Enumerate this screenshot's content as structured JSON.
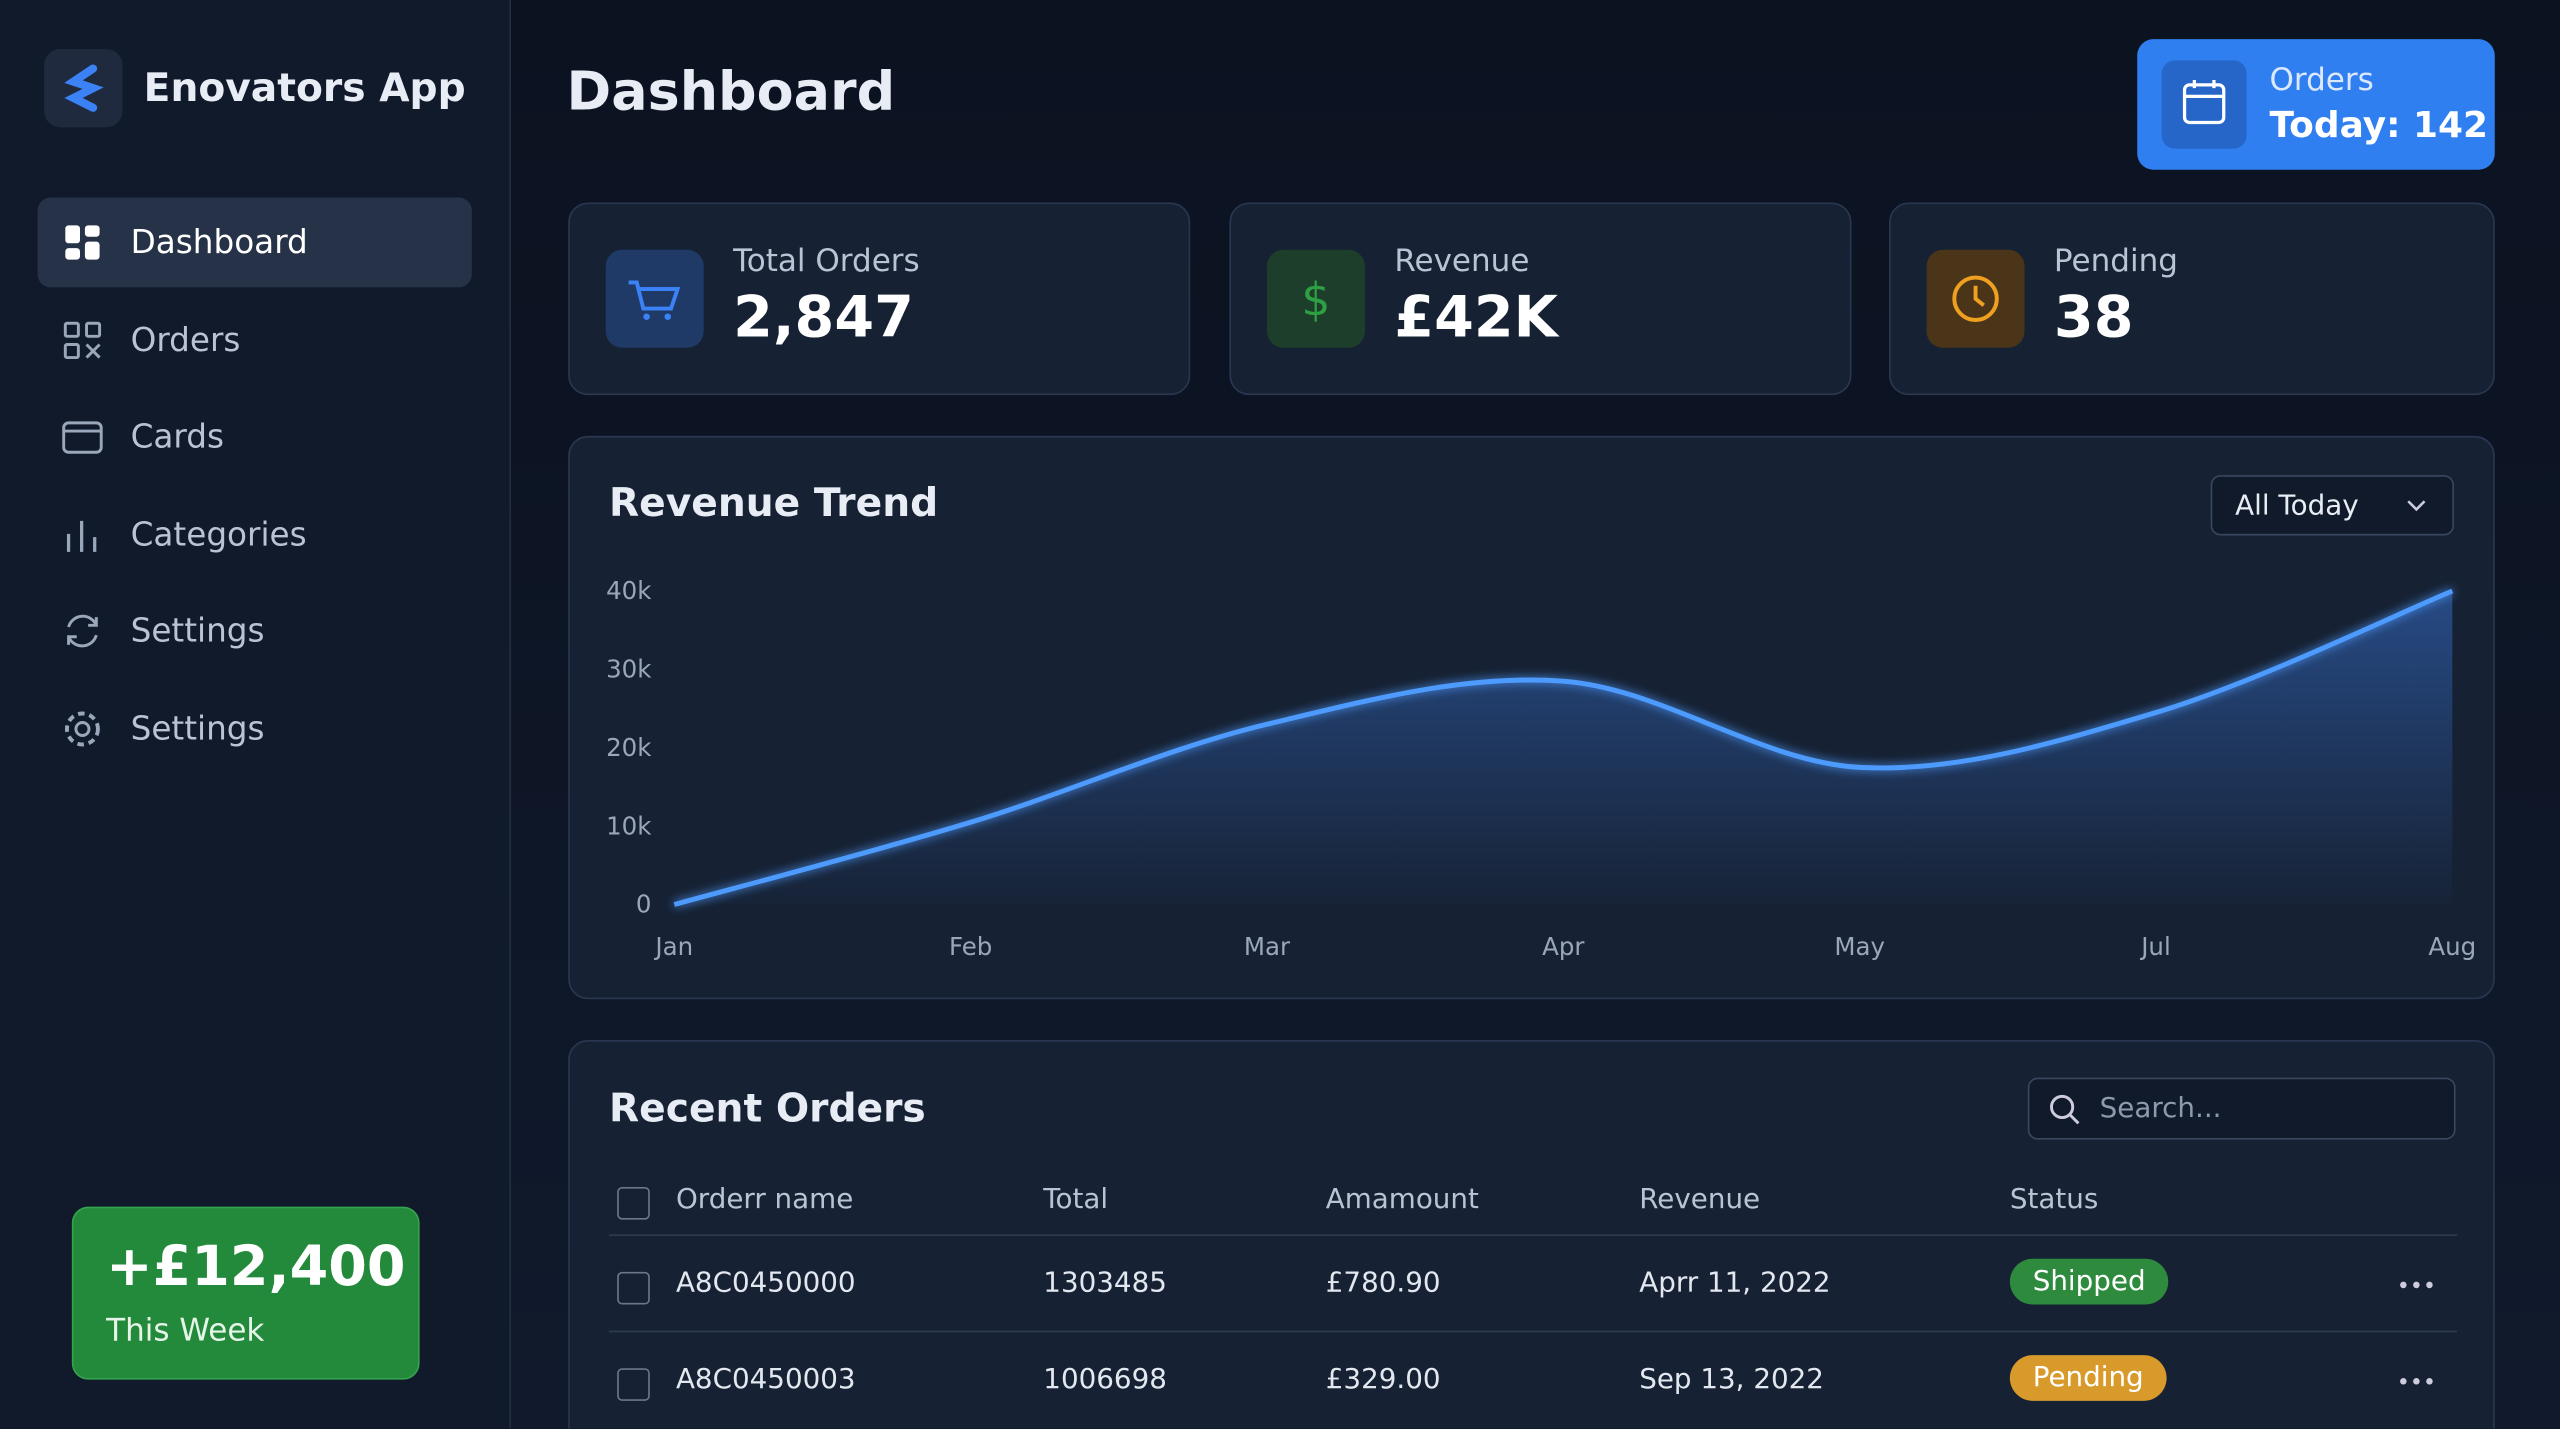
{
  "app": {
    "name": "Enovators App"
  },
  "nav": [
    "Dashboard",
    "Orders",
    "Cards",
    "Categories",
    "Settings",
    "Settings"
  ],
  "promo": {
    "value": "+£12,400",
    "label": "This Week"
  },
  "header": {
    "title": "Dashboard",
    "orders_label": "Orders",
    "orders_value": "Today: 142"
  },
  "stats": [
    {
      "label": "Total Orders",
      "value": "2,847"
    },
    {
      "label": "Revenue",
      "value": "£42K"
    },
    {
      "label": "Pending",
      "value": "38"
    }
  ],
  "chart_data": {
    "type": "line",
    "title": "Revenue Trend",
    "filter": "All Today",
    "categories": [
      "Jan",
      "Feb",
      "Mar",
      "Apr",
      "May",
      "Jul",
      "Aug"
    ],
    "series": [
      {
        "name": "Revenue",
        "color": "#4d9bff",
        "values": [
          0,
          10500,
          23000,
          28500,
          17500,
          24500,
          40000
        ]
      }
    ],
    "ylim": [
      0,
      40000
    ],
    "yticks": [
      0,
      {
        "value": 10000,
        "label": "10k"
      },
      {
        "value": 20000,
        "label": "20k"
      },
      {
        "value": 30000,
        "label": "30k"
      },
      {
        "value": 40000,
        "label": "40k"
      }
    ],
    "grid": false
  },
  "table": {
    "title": "Recent Orders",
    "search_placeholder": "Search...",
    "columns": [
      "Orderr name",
      "Total",
      "Amamount",
      "Revenue",
      "Status"
    ],
    "rows": [
      [
        "A8C0450000",
        "1303485",
        "£780.90",
        "Aprr 11, 2022",
        "Shipped"
      ],
      [
        "A8C0450003",
        "1006698",
        "£329.00",
        "Sep 13, 2022",
        "Pending"
      ]
    ]
  }
}
